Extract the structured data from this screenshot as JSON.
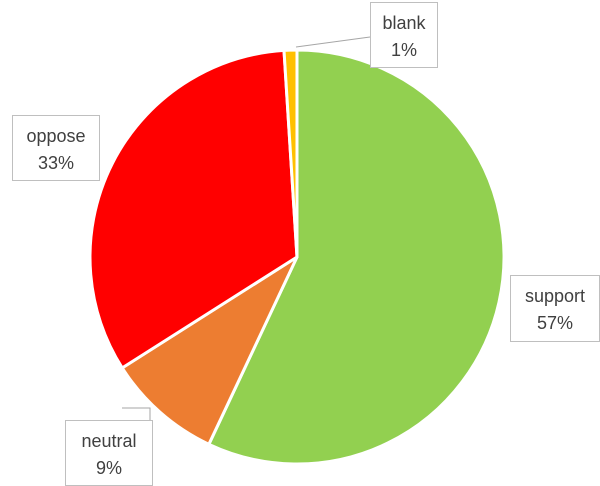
{
  "chart_data": {
    "type": "pie",
    "title": "",
    "categories": [
      "support",
      "neutral",
      "oppose",
      "blank"
    ],
    "values": [
      57,
      9,
      33,
      1
    ],
    "value_labels": [
      "57%",
      "9%",
      "33%",
      "1%"
    ],
    "colors": [
      "#92d050",
      "#ed7d31",
      "#ff0000",
      "#ffc000"
    ],
    "legend": "none",
    "data_labels": "category-and-percent-callouts"
  }
}
